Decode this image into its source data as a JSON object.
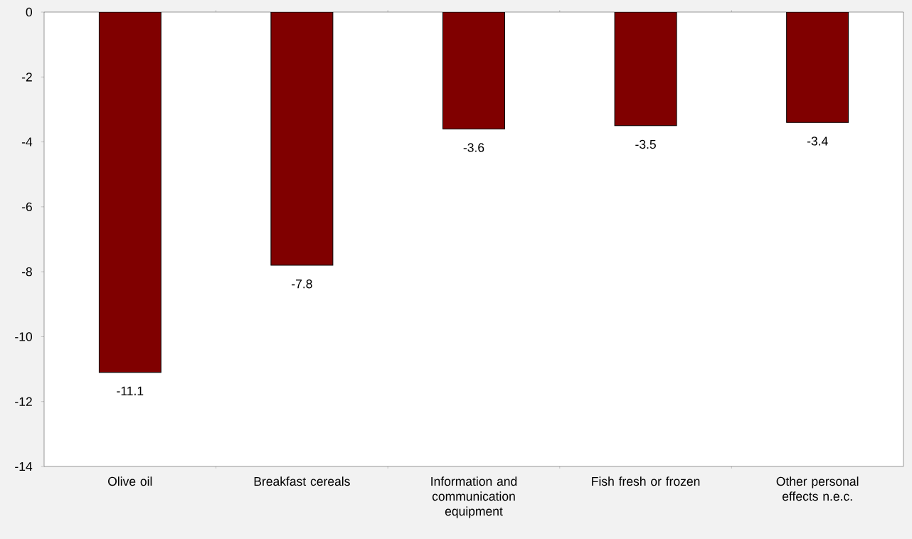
{
  "chart_data": {
    "type": "bar",
    "categories": [
      "Olive oil",
      "Breakfast cereals",
      "Information and communication equipment",
      "Fish fresh or frozen",
      "Other personal effects n.e.c."
    ],
    "values": [
      -11.1,
      -7.8,
      -3.6,
      -3.5,
      -3.4
    ],
    "color": "#800000",
    "ylim": [
      -14,
      0
    ],
    "yticks": [
      -14,
      -12,
      -10,
      -8,
      -6,
      -4,
      -2,
      0
    ],
    "data_labels": true,
    "grid": false
  }
}
